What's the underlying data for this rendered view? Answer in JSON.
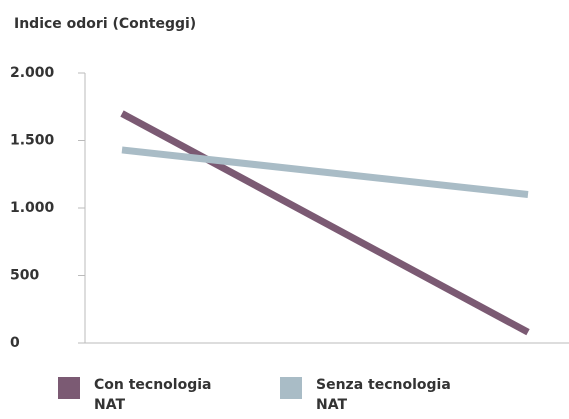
{
  "chart_data": {
    "type": "line",
    "title": "Indice odori (Conteggi)",
    "categories": [
      null,
      null
    ],
    "series": [
      {
        "name": "Con tecnologia NAT",
        "color": "#7b5a73",
        "values": [
          1700,
          80
        ]
      },
      {
        "name": "Senza tecnologia NAT",
        "color": "#a9bcc6",
        "values": [
          1430,
          1100
        ]
      }
    ],
    "ylim": [
      0,
      2000
    ],
    "yticks": [
      0,
      500,
      {
        "value": 1000,
        "label": "1.000"
      },
      {
        "value": 1500,
        "label": "1.500"
      },
      {
        "value": 2000,
        "label": "2.000"
      }
    ]
  }
}
